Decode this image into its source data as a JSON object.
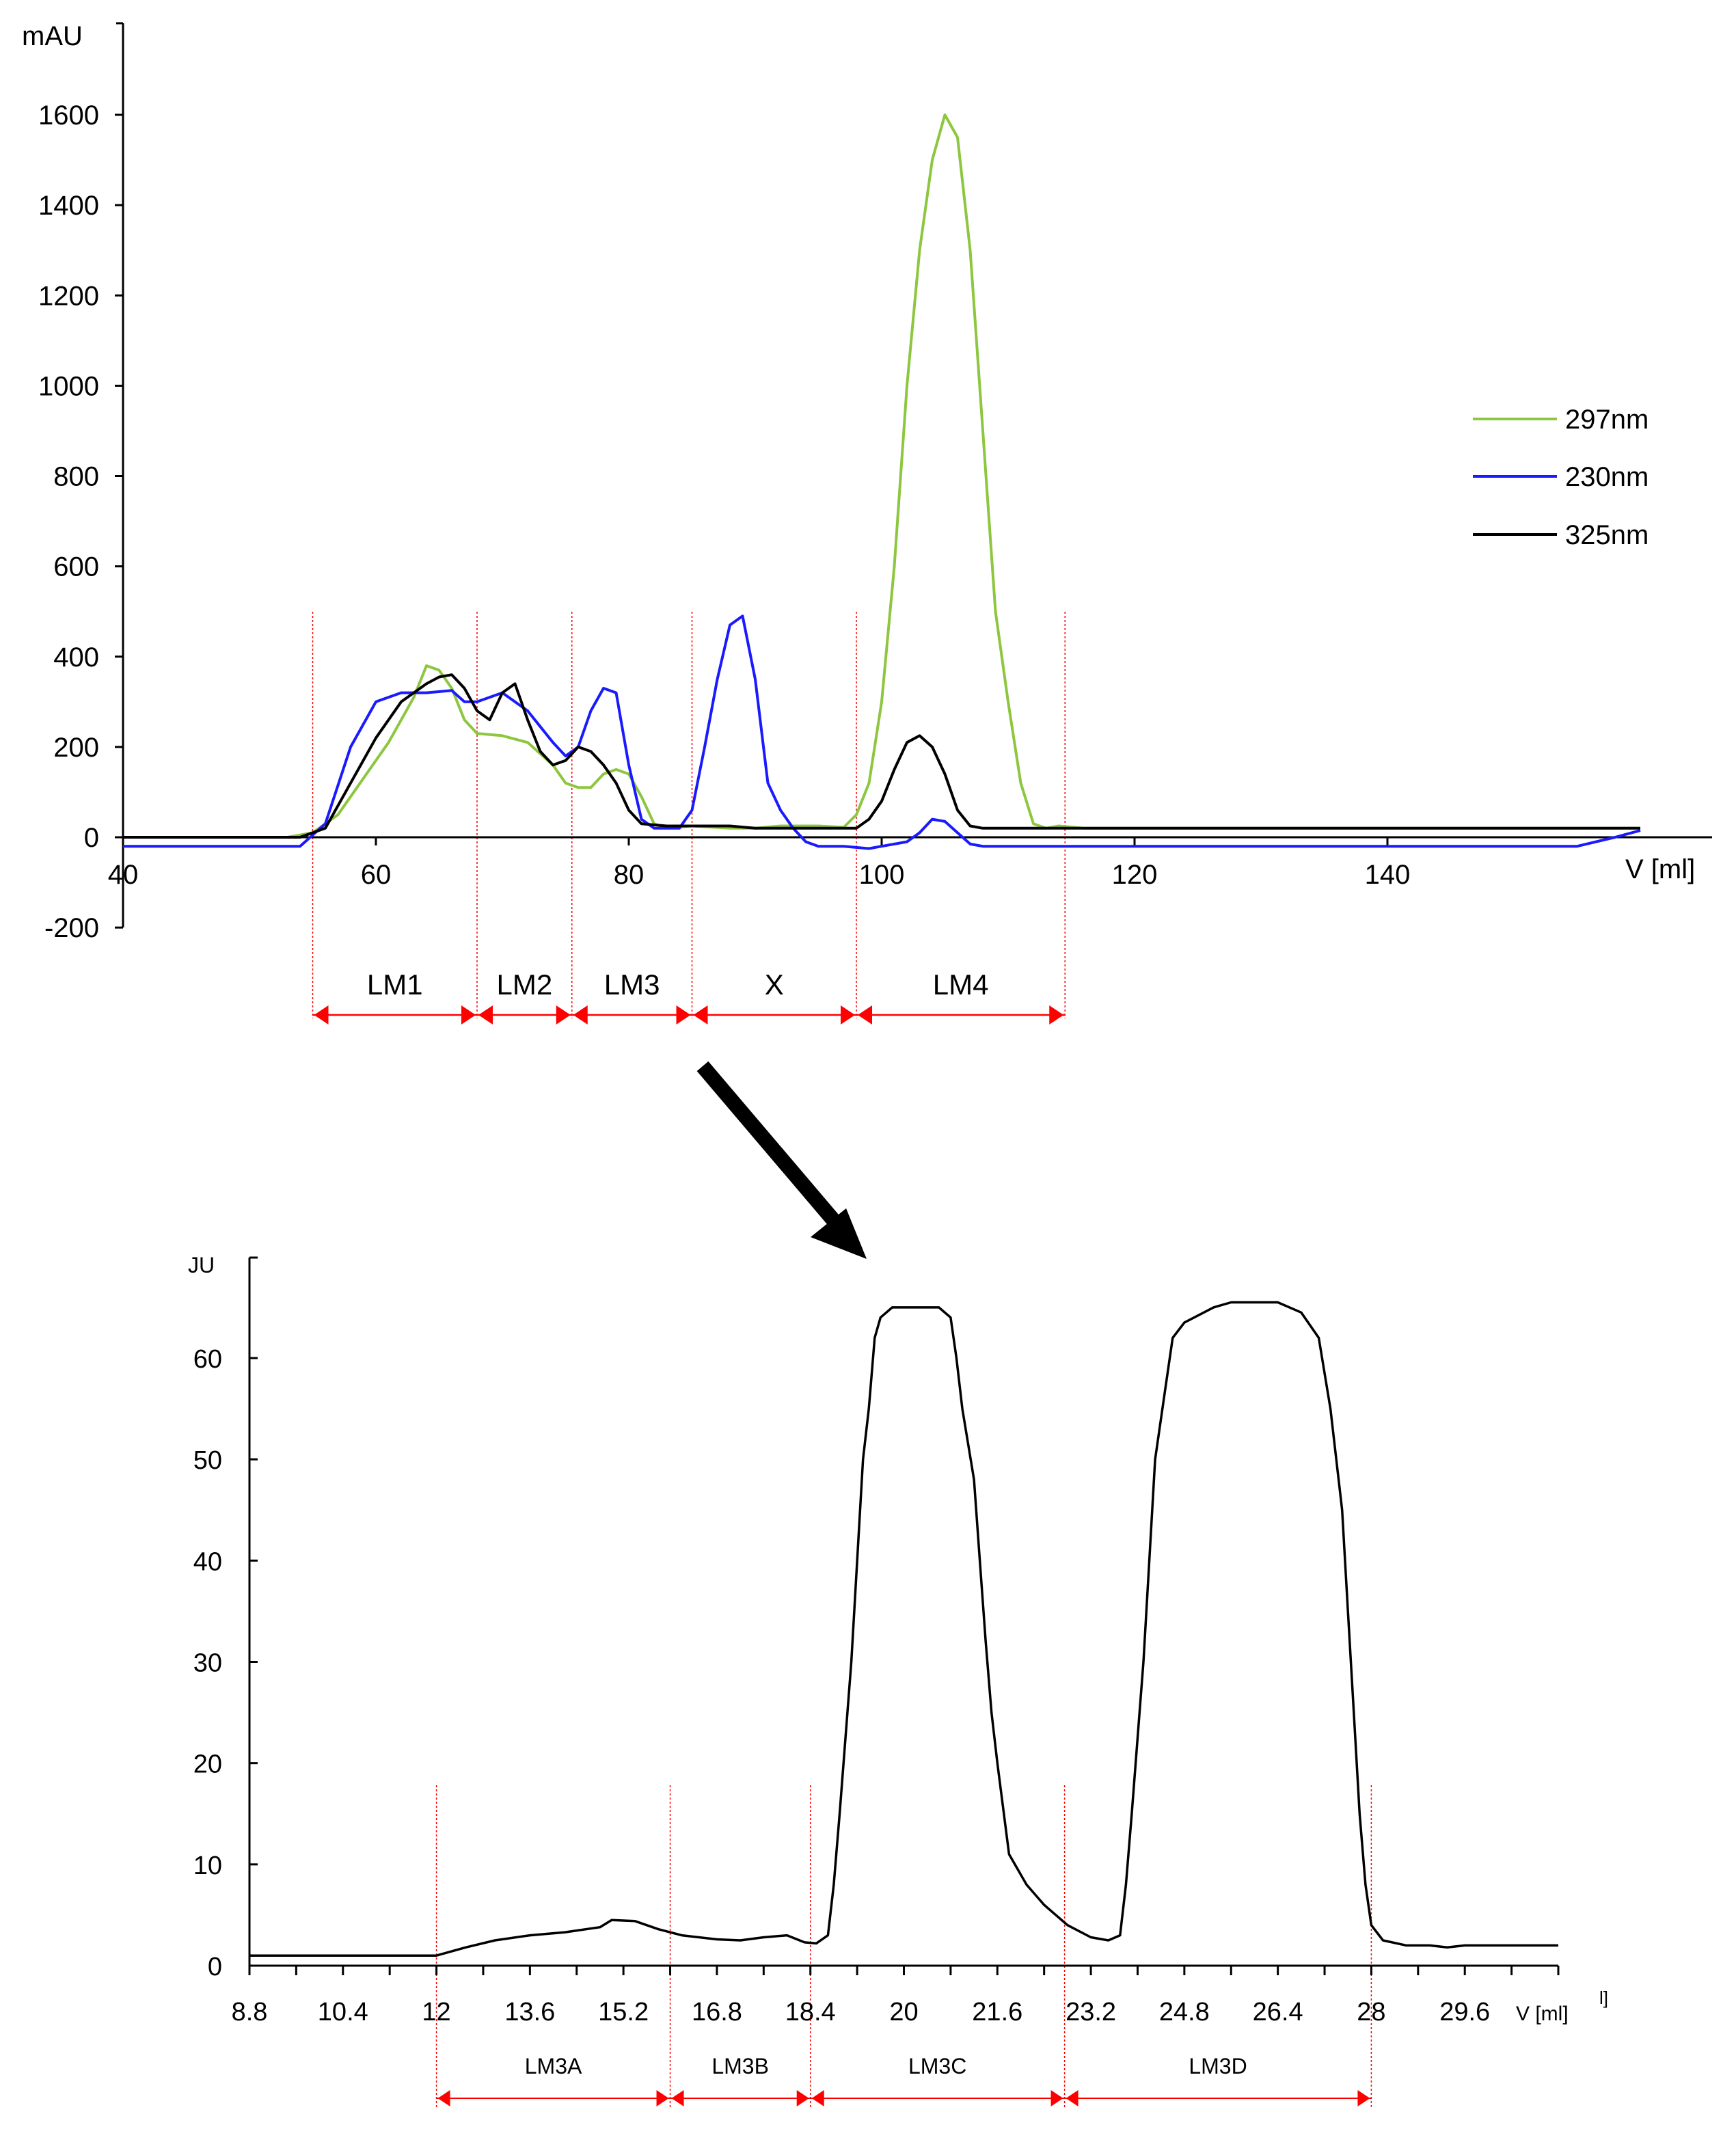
{
  "chart_data": [
    {
      "type": "line",
      "ylabel": "mAU",
      "xlabel": "V [ml]",
      "xlim": [
        40,
        160
      ],
      "ylim": [
        -200,
        1800
      ],
      "xticks": [
        40,
        60,
        80,
        100,
        120,
        140
      ],
      "yticks": [
        -200,
        0,
        200,
        400,
        600,
        800,
        1000,
        1200,
        1400,
        1600
      ],
      "legend": {
        "placement": "right",
        "entries": [
          "297nm",
          "230nm",
          "325nm"
        ]
      },
      "series": [
        {
          "name": "297nm",
          "color": "#8dc63f",
          "points": [
            [
              40,
              0
            ],
            [
              53,
              0
            ],
            [
              55,
              10
            ],
            [
              57,
              50
            ],
            [
              59,
              130
            ],
            [
              61,
              210
            ],
            [
              63,
              310
            ],
            [
              64,
              380
            ],
            [
              65,
              370
            ],
            [
              66,
              330
            ],
            [
              67,
              260
            ],
            [
              68,
              230
            ],
            [
              70,
              225
            ],
            [
              72,
              210
            ],
            [
              74,
              160
            ],
            [
              75,
              120
            ],
            [
              76,
              110
            ],
            [
              77,
              110
            ],
            [
              78,
              140
            ],
            [
              79,
              150
            ],
            [
              80,
              140
            ],
            [
              81,
              90
            ],
            [
              82,
              30
            ],
            [
              83,
              20
            ],
            [
              85,
              25
            ],
            [
              88,
              20
            ],
            [
              90,
              20
            ],
            [
              92,
              25
            ],
            [
              95,
              25
            ],
            [
              97,
              22
            ],
            [
              98,
              50
            ],
            [
              99,
              120
            ],
            [
              100,
              300
            ],
            [
              101,
              600
            ],
            [
              102,
              1000
            ],
            [
              103,
              1300
            ],
            [
              104,
              1500
            ],
            [
              105,
              1600
            ],
            [
              106,
              1550
            ],
            [
              107,
              1300
            ],
            [
              108,
              900
            ],
            [
              109,
              500
            ],
            [
              110,
              300
            ],
            [
              111,
              120
            ],
            [
              112,
              30
            ],
            [
              113,
              20
            ],
            [
              114,
              25
            ],
            [
              116,
              20
            ],
            [
              160,
              20
            ]
          ]
        },
        {
          "name": "230nm",
          "color": "#1a1aff",
          "points": [
            [
              40,
              -20
            ],
            [
              54,
              -20
            ],
            [
              56,
              30
            ],
            [
              58,
              200
            ],
            [
              60,
              300
            ],
            [
              62,
              320
            ],
            [
              64,
              320
            ],
            [
              66,
              325
            ],
            [
              67,
              300
            ],
            [
              68,
              300
            ],
            [
              70,
              320
            ],
            [
              72,
              280
            ],
            [
              74,
              210
            ],
            [
              75,
              180
            ],
            [
              76,
              200
            ],
            [
              77,
              280
            ],
            [
              78,
              330
            ],
            [
              79,
              320
            ],
            [
              80,
              160
            ],
            [
              81,
              40
            ],
            [
              82,
              20
            ],
            [
              83,
              20
            ],
            [
              84,
              20
            ],
            [
              85,
              60
            ],
            [
              86,
              200
            ],
            [
              87,
              350
            ],
            [
              88,
              470
            ],
            [
              89,
              490
            ],
            [
              90,
              350
            ],
            [
              91,
              120
            ],
            [
              92,
              60
            ],
            [
              93,
              20
            ],
            [
              94,
              -10
            ],
            [
              95,
              -20
            ],
            [
              97,
              -20
            ],
            [
              99,
              -25
            ],
            [
              100,
              -20
            ],
            [
              102,
              -10
            ],
            [
              103,
              10
            ],
            [
              104,
              40
            ],
            [
              105,
              35
            ],
            [
              106,
              10
            ],
            [
              107,
              -15
            ],
            [
              108,
              -20
            ],
            [
              155,
              -20
            ],
            [
              158,
              0
            ],
            [
              160,
              15
            ]
          ]
        },
        {
          "name": "325nm",
          "color": "#000000",
          "points": [
            [
              40,
              0
            ],
            [
              54,
              0
            ],
            [
              56,
              20
            ],
            [
              58,
              120
            ],
            [
              60,
              220
            ],
            [
              62,
              300
            ],
            [
              64,
              340
            ],
            [
              65,
              355
            ],
            [
              66,
              360
            ],
            [
              67,
              330
            ],
            [
              68,
              280
            ],
            [
              69,
              260
            ],
            [
              70,
              320
            ],
            [
              71,
              340
            ],
            [
              72,
              260
            ],
            [
              73,
              190
            ],
            [
              74,
              160
            ],
            [
              75,
              170
            ],
            [
              76,
              200
            ],
            [
              77,
              190
            ],
            [
              78,
              160
            ],
            [
              79,
              120
            ],
            [
              80,
              60
            ],
            [
              81,
              30
            ],
            [
              83,
              25
            ],
            [
              88,
              25
            ],
            [
              90,
              20
            ],
            [
              94,
              20
            ],
            [
              98,
              20
            ],
            [
              99,
              40
            ],
            [
              100,
              80
            ],
            [
              101,
              150
            ],
            [
              102,
              210
            ],
            [
              103,
              225
            ],
            [
              104,
              200
            ],
            [
              105,
              140
            ],
            [
              106,
              60
            ],
            [
              107,
              25
            ],
            [
              108,
              20
            ],
            [
              110,
              20
            ],
            [
              160,
              20
            ]
          ]
        }
      ],
      "fractions": [
        {
          "label": "LM1",
          "from": 55,
          "to": 68
        },
        {
          "label": "LM2",
          "from": 68,
          "to": 75.5
        },
        {
          "label": "LM3",
          "from": 75.5,
          "to": 85
        },
        {
          "label": "X",
          "from": 85,
          "to": 98
        },
        {
          "label": "LM4",
          "from": 98,
          "to": 114.5
        }
      ]
    },
    {
      "type": "line",
      "ylabel": "JU",
      "xlabel": "V [ml]",
      "xlim": [
        8.8,
        31.2
      ],
      "ylim": [
        0,
        70
      ],
      "xticks": [
        8.8,
        10.4,
        12,
        13.6,
        15.2,
        16.8,
        18.4,
        20,
        21.6,
        23.2,
        24.8,
        26.4,
        28,
        29.6
      ],
      "xtick_labels": [
        "8.8",
        "10.4",
        "12",
        "13.6",
        "15.2",
        "16.8",
        "18.4",
        "20",
        "21.6",
        "23.2",
        "24.8",
        "26.4",
        "28",
        "29.6"
      ],
      "yticks": [
        0,
        10,
        20,
        30,
        40,
        50,
        60
      ],
      "series": [
        {
          "name": "",
          "color": "#000000",
          "points": [
            [
              8.8,
              1
            ],
            [
              12,
              1
            ],
            [
              12.5,
              1.8
            ],
            [
              13,
              2.5
            ],
            [
              13.6,
              3
            ],
            [
              14.2,
              3.3
            ],
            [
              14.8,
              3.8
            ],
            [
              15.0,
              4.5
            ],
            [
              15.4,
              4.4
            ],
            [
              15.8,
              3.6
            ],
            [
              16.2,
              3
            ],
            [
              16.8,
              2.6
            ],
            [
              17.2,
              2.5
            ],
            [
              17.6,
              2.8
            ],
            [
              18.0,
              3
            ],
            [
              18.3,
              2.3
            ],
            [
              18.5,
              2.2
            ],
            [
              18.7,
              3
            ],
            [
              18.8,
              8
            ],
            [
              18.9,
              15
            ],
            [
              19.1,
              30
            ],
            [
              19.3,
              50
            ],
            [
              19.4,
              55
            ],
            [
              19.5,
              62
            ],
            [
              19.6,
              64
            ],
            [
              19.8,
              65
            ],
            [
              20.0,
              65
            ],
            [
              20.6,
              65
            ],
            [
              20.8,
              64
            ],
            [
              20.9,
              60
            ],
            [
              21.0,
              55
            ],
            [
              21.2,
              48
            ],
            [
              21.3,
              40
            ],
            [
              21.4,
              32
            ],
            [
              21.5,
              25
            ],
            [
              21.6,
              20
            ],
            [
              21.8,
              11
            ],
            [
              22.1,
              8
            ],
            [
              22.4,
              6
            ],
            [
              22.8,
              4
            ],
            [
              23.2,
              2.8
            ],
            [
              23.5,
              2.5
            ],
            [
              23.7,
              3
            ],
            [
              23.8,
              8
            ],
            [
              23.9,
              15
            ],
            [
              24.1,
              30
            ],
            [
              24.2,
              40
            ],
            [
              24.3,
              50
            ],
            [
              24.5,
              58
            ],
            [
              24.6,
              62
            ],
            [
              24.8,
              63.5
            ],
            [
              25.3,
              65
            ],
            [
              25.6,
              65.5
            ],
            [
              26.4,
              65.5
            ],
            [
              26.8,
              64.5
            ],
            [
              27.1,
              62
            ],
            [
              27.3,
              55
            ],
            [
              27.5,
              45
            ],
            [
              27.6,
              35
            ],
            [
              27.7,
              25
            ],
            [
              27.8,
              15
            ],
            [
              27.9,
              8
            ],
            [
              28.0,
              4
            ],
            [
              28.2,
              2.5
            ],
            [
              28.6,
              2.0
            ],
            [
              29.0,
              2.0
            ],
            [
              29.3,
              1.8
            ],
            [
              29.6,
              2.0
            ],
            [
              31.2,
              2.0
            ]
          ]
        }
      ],
      "fractions": [
        {
          "label": "LM3A",
          "from": 12,
          "to": 16.0
        },
        {
          "label": "LM3B",
          "from": 16.0,
          "to": 18.4
        },
        {
          "label": "LM3C",
          "from": 18.4,
          "to": 22.75
        },
        {
          "label": "LM3D",
          "from": 22.75,
          "to": 28.0
        }
      ],
      "extra_text": "l]"
    }
  ]
}
